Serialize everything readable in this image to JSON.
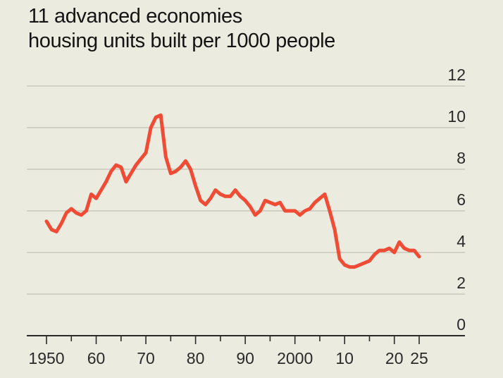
{
  "chart_data": {
    "type": "line",
    "title": "11 advanced economies",
    "subtitle": "housing units built per 1000 people",
    "xlabel": "",
    "ylabel": "",
    "xlim": [
      1946,
      2033
    ],
    "ylim": [
      0,
      12
    ],
    "y_ticks": [
      0,
      2,
      4,
      6,
      8,
      10,
      12
    ],
    "y_tick_labels": [
      "0",
      "2",
      "4",
      "6",
      "8",
      "10",
      "12"
    ],
    "x_ticks": [
      1950,
      1960,
      1970,
      1980,
      1990,
      2000,
      2010,
      2020,
      2025
    ],
    "x_tick_labels": [
      "1950",
      "60",
      "70",
      "80",
      "90",
      "2000",
      "10",
      "20",
      "25"
    ],
    "grid": true,
    "grid_axis": "y",
    "y_axis_side": "right",
    "series": [
      {
        "color": "#ef4b35",
        "x": [
          1950,
          1951,
          1952,
          1953,
          1954,
          1955,
          1956,
          1957,
          1958,
          1959,
          1960,
          1961,
          1962,
          1963,
          1964,
          1965,
          1966,
          1967,
          1968,
          1969,
          1970,
          1971,
          1972,
          1973,
          1974,
          1975,
          1976,
          1977,
          1978,
          1979,
          1980,
          1981,
          1982,
          1983,
          1984,
          1985,
          1986,
          1987,
          1988,
          1989,
          1990,
          1991,
          1992,
          1993,
          1994,
          1995,
          1996,
          1997,
          1998,
          1999,
          2000,
          2001,
          2002,
          2003,
          2004,
          2005,
          2006,
          2007,
          2008,
          2009,
          2010,
          2011,
          2012,
          2013,
          2014,
          2015,
          2016,
          2017,
          2018,
          2019,
          2020,
          2021,
          2022,
          2023,
          2024,
          2025
        ],
        "y": [
          5.5,
          5.1,
          5.0,
          5.4,
          5.9,
          6.1,
          5.9,
          5.8,
          6.0,
          6.8,
          6.6,
          7.0,
          7.4,
          7.9,
          8.2,
          8.1,
          7.4,
          7.8,
          8.2,
          8.5,
          8.8,
          10.0,
          10.5,
          10.6,
          8.6,
          7.8,
          7.9,
          8.1,
          8.4,
          8.0,
          7.2,
          6.5,
          6.3,
          6.6,
          7.0,
          6.8,
          6.7,
          6.7,
          7.0,
          6.7,
          6.5,
          6.2,
          5.8,
          6.0,
          6.5,
          6.4,
          6.3,
          6.4,
          6.0,
          6.0,
          6.0,
          5.8,
          6.0,
          6.1,
          6.4,
          6.6,
          6.8,
          6.0,
          5.1,
          3.7,
          3.4,
          3.3,
          3.3,
          3.4,
          3.5,
          3.6,
          3.9,
          4.1,
          4.1,
          4.2,
          4.0,
          4.5,
          4.2,
          4.1,
          4.1,
          3.8
        ]
      }
    ]
  }
}
